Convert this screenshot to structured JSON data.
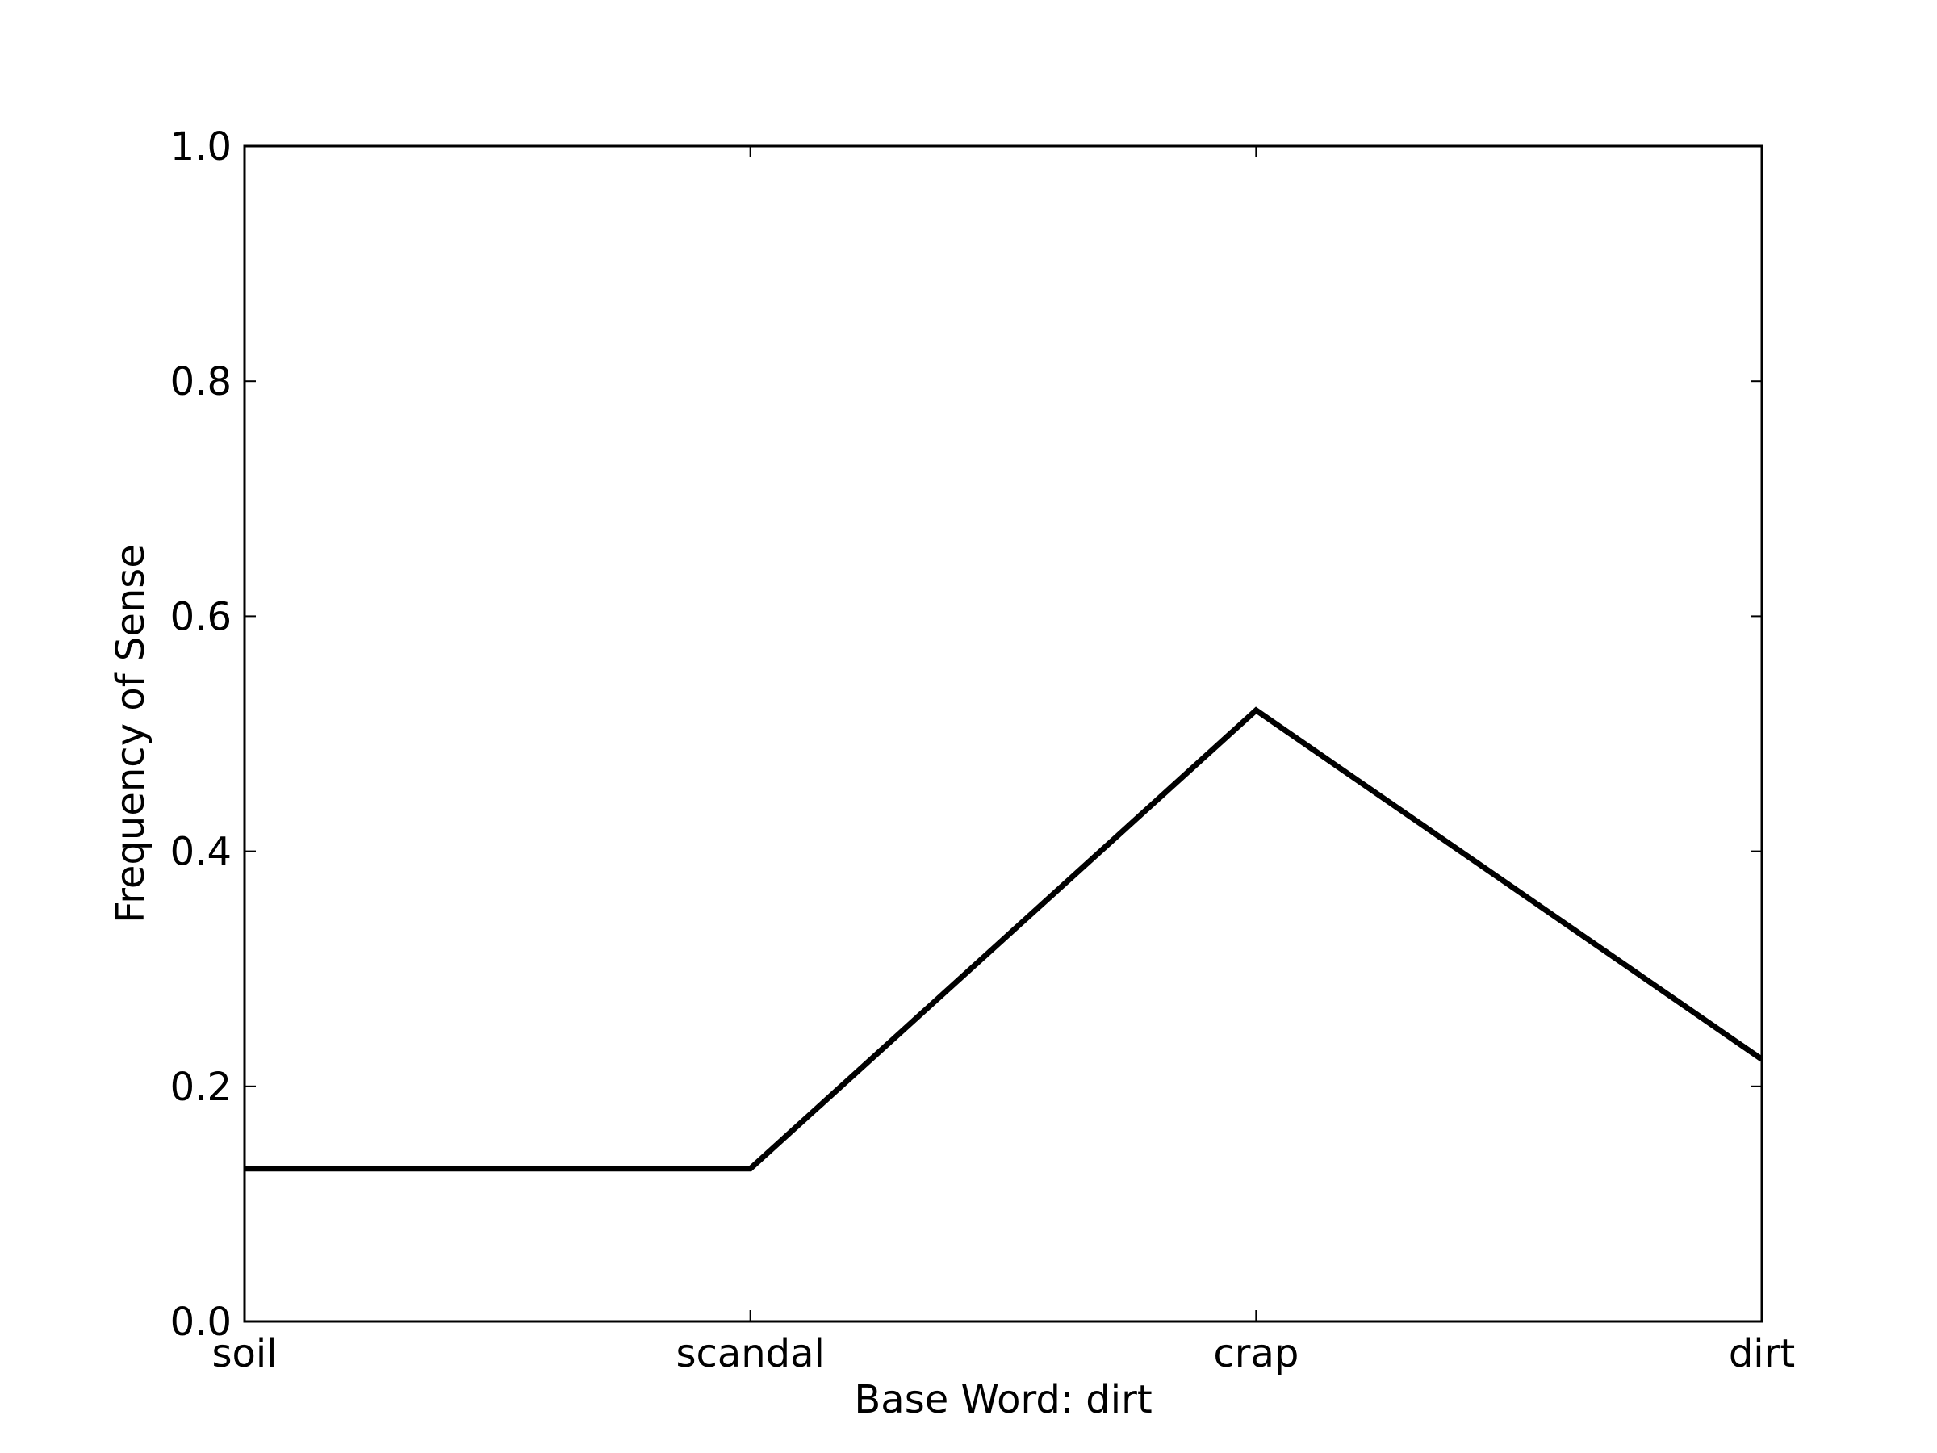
{
  "chart_data": {
    "type": "line",
    "categories": [
      "soil",
      "scandal",
      "crap",
      "dirt"
    ],
    "series": [
      {
        "values": [
          0.13,
          0.13,
          0.52,
          0.223
        ],
        "color": "#000000"
      }
    ],
    "xlabel": "Base Word: dirt",
    "ylabel": "Frequency of Sense",
    "ylim": [
      0.0,
      1.0
    ],
    "yticks": [
      "0.0",
      "0.2",
      "0.4",
      "0.6",
      "0.8",
      "1.0"
    ],
    "grid": false
  }
}
